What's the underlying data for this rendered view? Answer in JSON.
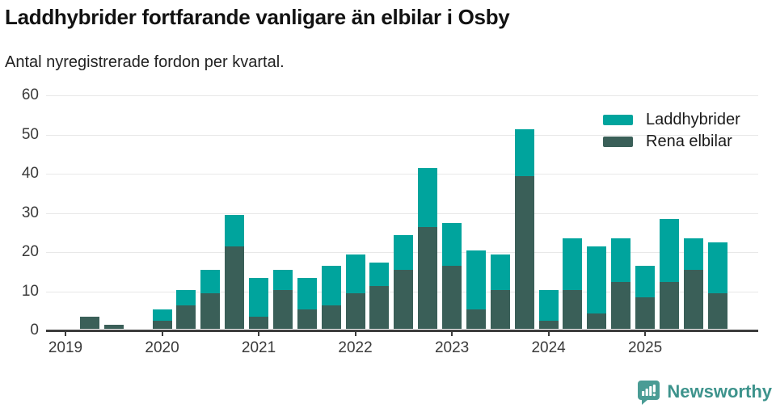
{
  "header": {
    "title": "Laddhybrider fortfarande vanligare än elbilar i Osby",
    "subtitle": "Antal nyregistrerade fordon per kvartal."
  },
  "legend": {
    "items": [
      {
        "label": "Laddhybrider",
        "color": "#00A49D"
      },
      {
        "label": "Rena elbilar",
        "color": "#3A5F58"
      }
    ]
  },
  "footer": {
    "brand": "Newsworthy",
    "brand_color": "#3D938C",
    "logo_icon": "speech-bubble-bar-chart-icon",
    "logo_icon_color": "#4A9C95"
  },
  "chart_data": {
    "type": "bar",
    "stacked": true,
    "title": "Laddhybrider fortfarande vanligare än elbilar i Osby",
    "subtitle": "Antal nyregistrerade fordon per kvartal.",
    "xlabel": "",
    "ylabel": "",
    "x": [
      "2019 Q1",
      "2019 Q2",
      "2019 Q3",
      "2019 Q4",
      "2020 Q1",
      "2020 Q2",
      "2020 Q3",
      "2020 Q4",
      "2021 Q1",
      "2021 Q2",
      "2021 Q3",
      "2021 Q4",
      "2022 Q1",
      "2022 Q2",
      "2022 Q3",
      "2022 Q4",
      "2023 Q1",
      "2023 Q2",
      "2023 Q3",
      "2023 Q4",
      "2024 Q1",
      "2024 Q2",
      "2024 Q3",
      "2024 Q4",
      "2025 Q1",
      "2025 Q2",
      "2025 Q3",
      "2025 Q4"
    ],
    "series": [
      {
        "name": "Laddhybrider",
        "color": "#00A49D",
        "values": [
          0,
          0,
          0,
          0,
          3,
          4,
          6,
          8,
          10,
          5,
          8,
          10,
          10,
          6,
          9,
          15,
          11,
          15,
          9,
          12,
          8,
          13,
          17,
          11,
          8,
          16,
          8,
          13
        ]
      },
      {
        "name": "Rena elbilar",
        "color": "#3A5F58",
        "values": [
          0,
          3,
          1,
          0,
          2,
          6,
          9,
          21,
          3,
          10,
          5,
          6,
          9,
          11,
          15,
          26,
          16,
          5,
          10,
          39,
          2,
          10,
          4,
          12,
          8,
          12,
          15,
          9
        ]
      }
    ],
    "totals": [
      0,
      3,
      1,
      0,
      5,
      10,
      15,
      29,
      13,
      15,
      13,
      16,
      19,
      17,
      24,
      41,
      27,
      20,
      19,
      51,
      10,
      23,
      21,
      23,
      16,
      28,
      23,
      22
    ],
    "stack_order_bottom_to_top": [
      "Rena elbilar",
      "Laddhybrider"
    ],
    "ylim": [
      0,
      60
    ],
    "yticks": [
      0,
      10,
      20,
      30,
      40,
      50,
      60
    ],
    "x_year_ticks": [
      "2019",
      "2020",
      "2021",
      "2022",
      "2023",
      "2024",
      "2025"
    ],
    "grid": true,
    "legend_position": "top-right"
  }
}
